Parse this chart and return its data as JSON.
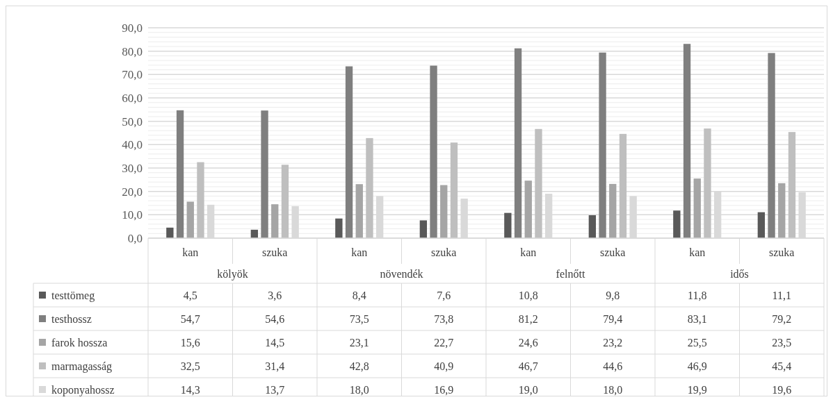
{
  "chart_data": {
    "type": "bar",
    "categories": [
      "kan",
      "szuka",
      "kan",
      "szuka",
      "kan",
      "szuka",
      "kan",
      "szuka"
    ],
    "annotations": [
      "kölyök",
      "növendék",
      "felnőtt",
      "idős"
    ],
    "series": [
      {
        "name": "testtömeg",
        "color": "#595959",
        "values": [
          4.5,
          3.6,
          8.4,
          7.6,
          10.8,
          9.8,
          11.8,
          11.1
        ],
        "value_labels": [
          "4,5",
          "3,6",
          "8,4",
          "7,6",
          "10,8",
          "9,8",
          "11,8",
          "11,1"
        ]
      },
      {
        "name": "testhossz",
        "color": "#7f7f7f",
        "values": [
          54.7,
          54.6,
          73.5,
          73.8,
          81.2,
          79.4,
          83.1,
          79.2
        ],
        "value_labels": [
          "54,7",
          "54,6",
          "73,5",
          "73,8",
          "81,2",
          "79,4",
          "83,1",
          "79,2"
        ]
      },
      {
        "name": "farok hossza",
        "color": "#a5a5a5",
        "values": [
          15.6,
          14.5,
          23.1,
          22.7,
          24.6,
          23.2,
          25.5,
          23.5
        ],
        "value_labels": [
          "15,6",
          "14,5",
          "23,1",
          "22,7",
          "24,6",
          "23,2",
          "25,5",
          "23,5"
        ]
      },
      {
        "name": "marmagasság",
        "color": "#bfbfbf",
        "values": [
          32.5,
          31.4,
          42.8,
          40.9,
          46.7,
          44.6,
          46.9,
          45.4
        ],
        "value_labels": [
          "32,5",
          "31,4",
          "42,8",
          "40,9",
          "46,7",
          "44,6",
          "46,9",
          "45,4"
        ]
      },
      {
        "name": "koponyahossz",
        "color": "#d9d9d9",
        "values": [
          14.3,
          13.7,
          18.0,
          16.9,
          19.0,
          18.0,
          19.9,
          19.6
        ],
        "value_labels": [
          "14,3",
          "13,7",
          "18,0",
          "16,9",
          "19,0",
          "18,0",
          "19,9",
          "19,6"
        ]
      }
    ],
    "ylim": [
      0,
      90
    ],
    "yticks": [
      {
        "value": 0,
        "label": "0,0"
      },
      {
        "value": 2,
        "label": null
      },
      {
        "value": 4,
        "label": null
      },
      {
        "value": 6,
        "label": null
      },
      {
        "value": 8,
        "label": null
      },
      {
        "value": 10,
        "label": "10,0"
      },
      {
        "value": 12,
        "label": null
      },
      {
        "value": 14,
        "label": null
      },
      {
        "value": 16,
        "label": null
      },
      {
        "value": 18,
        "label": null
      },
      {
        "value": 20,
        "label": "20,0"
      },
      {
        "value": 22,
        "label": null
      },
      {
        "value": 24,
        "label": null
      },
      {
        "value": 26,
        "label": null
      },
      {
        "value": 28,
        "label": null
      },
      {
        "value": 30,
        "label": "30,0"
      },
      {
        "value": 32,
        "label": null
      },
      {
        "value": 34,
        "label": null
      },
      {
        "value": 36,
        "label": null
      },
      {
        "value": 38,
        "label": null
      },
      {
        "value": 40,
        "label": "40,0"
      },
      {
        "value": 42,
        "label": null
      },
      {
        "value": 44,
        "label": null
      },
      {
        "value": 46,
        "label": null
      },
      {
        "value": 48,
        "label": null
      },
      {
        "value": 50,
        "label": "50,0"
      },
      {
        "value": 52,
        "label": null
      },
      {
        "value": 54,
        "label": null
      },
      {
        "value": 56,
        "label": null
      },
      {
        "value": 58,
        "label": null
      },
      {
        "value": 60,
        "label": "60,0"
      },
      {
        "value": 62,
        "label": null
      },
      {
        "value": 64,
        "label": null
      },
      {
        "value": 66,
        "label": null
      },
      {
        "value": 68,
        "label": null
      },
      {
        "value": 70,
        "label": "70,0"
      },
      {
        "value": 72,
        "label": null
      },
      {
        "value": 74,
        "label": null
      },
      {
        "value": 76,
        "label": null
      },
      {
        "value": 78,
        "label": null
      },
      {
        "value": 80,
        "label": "80,0"
      },
      {
        "value": 82,
        "label": null
      },
      {
        "value": 84,
        "label": null
      },
      {
        "value": 86,
        "label": null
      },
      {
        "value": 88,
        "label": null
      },
      {
        "value": 90,
        "label": "90,0"
      }
    ],
    "grid": "y",
    "legend": "bottom"
  }
}
